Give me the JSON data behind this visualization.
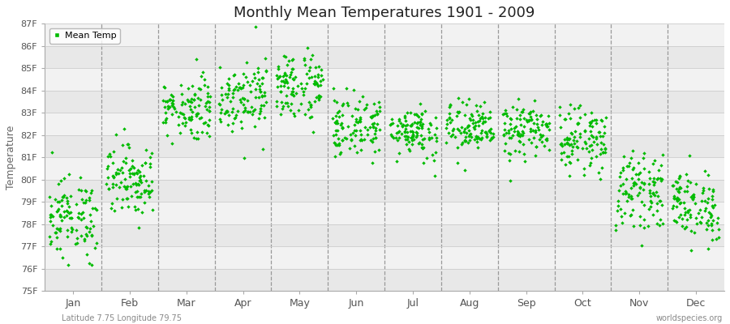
{
  "title": "Monthly Mean Temperatures 1901 - 2009",
  "ylabel": "Temperature",
  "xlabel_bottom": "Latitude 7.75 Longitude 79.75",
  "watermark": "worldspecies.org",
  "legend_label": "Mean Temp",
  "marker_color": "#00bb00",
  "bg_color": "#ffffff",
  "plot_bg_color": "#ebebeb",
  "ylim": [
    75,
    87
  ],
  "ytick_labels": [
    "75F",
    "76F",
    "77F",
    "78F",
    "79F",
    "80F",
    "81F",
    "82F",
    "83F",
    "84F",
    "85F",
    "86F",
    "87F"
  ],
  "ytick_values": [
    75,
    76,
    77,
    78,
    79,
    80,
    81,
    82,
    83,
    84,
    85,
    86,
    87
  ],
  "months": [
    "Jan",
    "Feb",
    "Mar",
    "Apr",
    "May",
    "Jun",
    "Jul",
    "Aug",
    "Sep",
    "Oct",
    "Nov",
    "Dec"
  ],
  "month_centers": [
    0.5,
    1.5,
    2.5,
    3.5,
    4.5,
    5.5,
    6.5,
    7.5,
    8.5,
    9.5,
    10.5,
    11.5
  ],
  "n_years": 109,
  "monthly_means": [
    78.3,
    80.0,
    83.2,
    83.8,
    84.2,
    82.4,
    82.2,
    82.3,
    82.2,
    81.8,
    79.5,
    78.8
  ],
  "monthly_stds": [
    0.9,
    0.8,
    0.7,
    0.8,
    0.8,
    0.7,
    0.6,
    0.6,
    0.6,
    0.7,
    0.8,
    0.8
  ]
}
